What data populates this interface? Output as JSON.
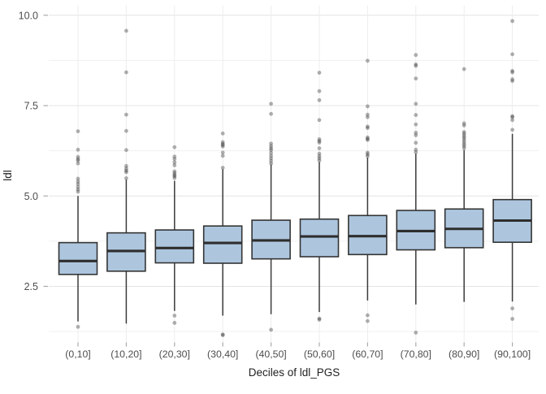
{
  "chart_data": {
    "type": "boxplot",
    "title": "",
    "xlabel": "Deciles of ldl_PGS",
    "ylabel": "ldl",
    "y_ticks": [
      2.5,
      5.0,
      7.5,
      10.0
    ],
    "y_tick_labels": [
      "2.5",
      "5.0",
      "7.5",
      "10.0"
    ],
    "y_grid_minor": [
      1.25,
      3.75,
      6.25,
      8.75
    ],
    "ylim": [
      0.8,
      10.3
    ],
    "grid": true,
    "legend": "none",
    "categories": [
      "(0,10]",
      "(10,20]",
      "(20,30]",
      "(30,40]",
      "(40,50]",
      "(50,60]",
      "(60,70]",
      "(70,80]",
      "(80,90]",
      "(90,100]"
    ],
    "boxes": [
      {
        "category": "(0,10]",
        "whisker_low": 1.53,
        "q1": 2.83,
        "median": 3.2,
        "q3": 3.71,
        "whisker_high": 5.0,
        "outliers_low": [
          1.38
        ],
        "outliers_high": [
          5.12,
          5.18,
          5.25,
          5.33,
          5.4,
          5.48,
          5.9,
          5.98,
          6.02,
          6.08,
          6.28,
          6.79
        ]
      },
      {
        "category": "(10,20]",
        "whisker_low": 1.47,
        "q1": 2.92,
        "median": 3.48,
        "q3": 3.98,
        "whisker_high": 5.45,
        "outliers_low": [],
        "outliers_high": [
          5.49,
          5.66,
          5.7,
          5.76,
          5.83,
          6.27,
          6.8,
          7.25,
          8.42,
          9.57
        ]
      },
      {
        "category": "(20,30]",
        "whisker_low": 1.82,
        "q1": 3.15,
        "median": 3.56,
        "q3": 4.06,
        "whisker_high": 5.42,
        "outliers_low": [
          1.49,
          1.69
        ],
        "outliers_high": [
          5.5,
          5.55,
          5.58,
          5.63,
          5.68,
          5.85,
          5.93,
          6.02,
          6.09,
          6.35
        ]
      },
      {
        "category": "(30,40]",
        "whisker_low": 1.69,
        "q1": 3.14,
        "median": 3.7,
        "q3": 4.17,
        "whisker_high": 5.74,
        "outliers_low": [
          1.15,
          1.17
        ],
        "outliers_high": [
          5.78,
          6.11,
          6.2,
          6.37,
          6.41,
          6.44,
          6.49,
          6.73
        ]
      },
      {
        "category": "(40,50]",
        "whisker_low": 1.73,
        "q1": 3.26,
        "median": 3.77,
        "q3": 4.33,
        "whisker_high": 5.87,
        "outliers_low": [
          1.3
        ],
        "outliers_high": [
          5.9,
          5.97,
          6.04,
          6.11,
          6.19,
          6.27,
          6.32,
          6.38,
          6.45,
          7.27,
          7.55
        ]
      },
      {
        "category": "(50,60]",
        "whisker_low": 1.79,
        "q1": 3.32,
        "median": 3.88,
        "q3": 4.36,
        "whisker_high": 5.94,
        "outliers_low": [
          1.58,
          1.61
        ],
        "outliers_high": [
          5.98,
          6.04,
          6.1,
          6.17,
          6.32,
          6.48,
          6.52,
          6.57,
          7.1,
          7.65,
          7.9,
          8.41
        ]
      },
      {
        "category": "(60,70]",
        "whisker_low": 2.11,
        "q1": 3.38,
        "median": 3.89,
        "q3": 4.46,
        "whisker_high": 6.06,
        "outliers_low": [
          1.54,
          1.7
        ],
        "outliers_high": [
          6.1,
          6.15,
          6.2,
          6.55,
          6.58,
          6.62,
          6.88,
          6.92,
          7.18,
          7.25,
          7.48,
          8.74
        ]
      },
      {
        "category": "(70,80]",
        "whisker_low": 2.0,
        "q1": 3.51,
        "median": 4.03,
        "q3": 4.6,
        "whisker_high": 6.17,
        "outliers_low": [
          1.22
        ],
        "outliers_high": [
          6.21,
          6.28,
          6.47,
          6.68,
          6.75,
          6.98,
          7.24,
          7.55,
          8.25,
          8.6,
          8.64,
          8.9
        ]
      },
      {
        "category": "(80,90]",
        "whisker_low": 2.07,
        "q1": 3.57,
        "median": 4.09,
        "q3": 4.64,
        "whisker_high": 6.27,
        "outliers_low": [],
        "outliers_high": [
          6.32,
          6.38,
          6.43,
          6.49,
          6.55,
          6.61,
          6.66,
          6.72,
          6.77,
          6.95,
          7.01,
          8.51
        ]
      },
      {
        "category": "(90,100]",
        "whisker_low": 2.08,
        "q1": 3.72,
        "median": 4.32,
        "q3": 4.9,
        "whisker_high": 6.72,
        "outliers_low": [
          1.6,
          1.89
        ],
        "outliers_high": [
          6.83,
          7.1,
          7.18,
          7.21,
          8.18,
          8.23,
          8.42,
          8.46,
          8.92,
          9.84
        ]
      }
    ],
    "style": {
      "box_fill": "#adc6de",
      "box_stroke": "#343434",
      "median_stroke": "#2e2e2e",
      "whisker_stroke": "#3a3a3a",
      "outlier_fill": "#404040",
      "outlier_opacity": 0.42,
      "grid_major": "#e4e4e4",
      "grid_minor": "#f1f1f1",
      "grid_vertical": "#ededed",
      "tick_mark": "#a9a9a9",
      "tick_label_color": "#4d4d4d",
      "axis_title_color": "#1f1f1f",
      "background": "#ffffff"
    }
  }
}
